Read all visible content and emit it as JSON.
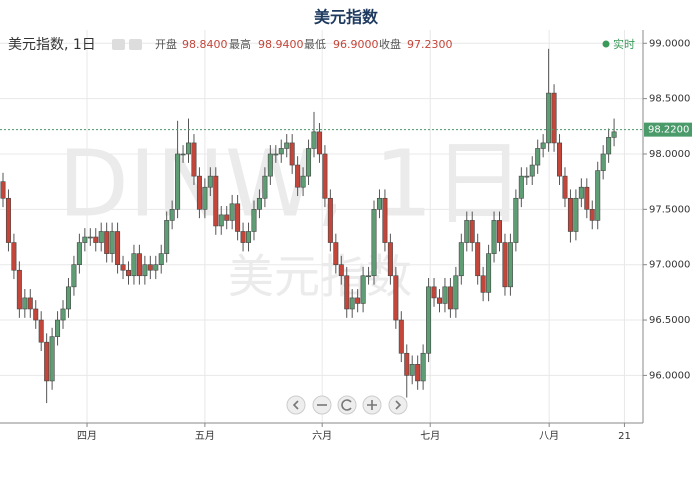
{
  "title": "美元指数",
  "header": {
    "symbol": "美元指数, 1日",
    "stats": [
      {
        "label": "开盘",
        "value": "98.8400"
      },
      {
        "label": "最高",
        "value": "98.9400"
      },
      {
        "label": "最低",
        "value": "96.9000"
      },
      {
        "label": "收盘",
        "value": "97.2300"
      }
    ],
    "live": "实时"
  },
  "watermark": {
    "symbol": "DINW, 1日",
    "name": "美元指数"
  },
  "chart_data": {
    "type": "candlestick",
    "up_color": "#5f9e75",
    "down_color": "#c4463a",
    "ylim": [
      95.57,
      99.12
    ],
    "yticks": [
      {
        "value": 96.0,
        "label": "96.0000"
      },
      {
        "value": 96.5,
        "label": "96.5000"
      },
      {
        "value": 97.0,
        "label": "97.0000"
      },
      {
        "value": 97.5,
        "label": "97.5000"
      },
      {
        "value": 98.0,
        "label": "98.0000"
      },
      {
        "value": 98.5,
        "label": "98.5000"
      },
      {
        "value": 99.0,
        "label": "99.0000"
      }
    ],
    "xlim": [
      -0.55,
      117.3
    ],
    "xticks": [
      {
        "value": 15.4,
        "label": "四月"
      },
      {
        "value": 37,
        "label": "五月"
      },
      {
        "value": 58.5,
        "label": "六月"
      },
      {
        "value": 78.3,
        "label": "七月"
      },
      {
        "value": 100.1,
        "label": "八月"
      },
      {
        "value": 113.9,
        "label": "21"
      }
    ],
    "grid": true,
    "current": {
      "value": 98.22,
      "label": "98.2200",
      "color": "#4a9a6a"
    },
    "candles": [
      [
        97.75,
        97.83,
        97.52,
        97.6
      ],
      [
        97.6,
        97.68,
        97.12,
        97.2
      ],
      [
        97.2,
        97.28,
        96.87,
        96.95
      ],
      [
        96.95,
        97.03,
        96.52,
        96.6
      ],
      [
        96.6,
        96.78,
        96.52,
        96.7
      ],
      [
        96.7,
        96.78,
        96.52,
        96.6
      ],
      [
        96.6,
        96.68,
        96.42,
        96.5
      ],
      [
        96.5,
        96.58,
        96.22,
        96.3
      ],
      [
        96.3,
        96.38,
        95.75,
        95.95
      ],
      [
        95.95,
        96.43,
        95.87,
        96.35
      ],
      [
        96.35,
        96.58,
        96.27,
        96.5
      ],
      [
        96.5,
        96.68,
        96.42,
        96.6
      ],
      [
        96.6,
        96.88,
        96.52,
        96.8
      ],
      [
        96.8,
        97.08,
        96.72,
        97.0
      ],
      [
        97.0,
        97.28,
        96.92,
        97.2
      ],
      [
        97.2,
        97.33,
        97.12,
        97.25
      ],
      [
        97.25,
        97.33,
        97.17,
        97.25
      ],
      [
        97.25,
        97.33,
        97.12,
        97.2
      ],
      [
        97.2,
        97.38,
        97.12,
        97.3
      ],
      [
        97.3,
        97.38,
        97.02,
        97.1
      ],
      [
        97.1,
        97.38,
        97.02,
        97.3
      ],
      [
        97.3,
        97.38,
        96.92,
        97.0
      ],
      [
        97.0,
        97.08,
        96.87,
        96.95
      ],
      [
        96.95,
        97.03,
        96.82,
        96.9
      ],
      [
        96.9,
        97.18,
        96.82,
        97.1
      ],
      [
        97.1,
        97.18,
        96.82,
        96.9
      ],
      [
        96.9,
        97.08,
        96.82,
        97.0
      ],
      [
        97.0,
        97.08,
        96.87,
        96.95
      ],
      [
        96.95,
        97.08,
        96.87,
        97.0
      ],
      [
        97.0,
        97.18,
        96.92,
        97.1
      ],
      [
        97.1,
        97.48,
        97.02,
        97.4
      ],
      [
        97.4,
        97.58,
        97.32,
        97.5
      ],
      [
        97.5,
        98.3,
        97.42,
        98.0
      ],
      [
        98.0,
        98.08,
        97.92,
        98.0
      ],
      [
        98.0,
        98.32,
        97.92,
        98.1
      ],
      [
        98.1,
        98.18,
        97.72,
        97.8
      ],
      [
        97.8,
        97.88,
        97.42,
        97.5
      ],
      [
        97.5,
        97.78,
        97.42,
        97.7
      ],
      [
        97.7,
        97.88,
        97.62,
        97.8
      ],
      [
        97.8,
        97.88,
        97.27,
        97.35
      ],
      [
        97.35,
        97.53,
        97.27,
        97.45
      ],
      [
        97.45,
        97.53,
        97.32,
        97.4
      ],
      [
        97.4,
        97.63,
        97.32,
        97.55
      ],
      [
        97.55,
        97.63,
        97.22,
        97.3
      ],
      [
        97.3,
        97.38,
        97.12,
        97.2
      ],
      [
        97.2,
        97.38,
        97.12,
        97.3
      ],
      [
        97.3,
        97.58,
        97.22,
        97.5
      ],
      [
        97.5,
        97.68,
        97.42,
        97.6
      ],
      [
        97.6,
        97.88,
        97.52,
        97.8
      ],
      [
        97.8,
        98.08,
        97.72,
        98.0
      ],
      [
        98.0,
        98.08,
        97.92,
        98.0
      ],
      [
        98.0,
        98.13,
        97.92,
        98.05
      ],
      [
        98.05,
        98.18,
        97.97,
        98.1
      ],
      [
        98.1,
        98.18,
        97.82,
        97.9
      ],
      [
        97.9,
        97.98,
        97.62,
        97.7
      ],
      [
        97.7,
        97.88,
        97.62,
        97.8
      ],
      [
        97.8,
        98.13,
        97.72,
        98.05
      ],
      [
        98.05,
        98.38,
        97.97,
        98.2
      ],
      [
        98.2,
        98.28,
        97.92,
        98.0
      ],
      [
        98.0,
        98.08,
        97.52,
        97.6
      ],
      [
        97.6,
        97.68,
        97.12,
        97.2
      ],
      [
        97.2,
        97.28,
        96.92,
        97.0
      ],
      [
        97.0,
        97.08,
        96.82,
        96.9
      ],
      [
        96.9,
        96.98,
        96.52,
        96.6
      ],
      [
        96.6,
        96.78,
        96.52,
        96.7
      ],
      [
        96.7,
        96.78,
        96.57,
        96.65
      ],
      [
        96.65,
        96.98,
        96.57,
        96.9
      ],
      [
        96.9,
        96.98,
        96.82,
        96.9
      ],
      [
        96.9,
        97.58,
        96.82,
        97.5
      ],
      [
        97.5,
        97.68,
        97.42,
        97.6
      ],
      [
        97.6,
        97.68,
        97.12,
        97.2
      ],
      [
        97.2,
        97.28,
        96.82,
        96.9
      ],
      [
        96.9,
        96.98,
        96.42,
        96.5
      ],
      [
        96.5,
        96.58,
        96.12,
        96.2
      ],
      [
        96.2,
        96.28,
        95.8,
        96.0
      ],
      [
        96.0,
        96.18,
        95.92,
        96.1
      ],
      [
        96.1,
        96.18,
        95.87,
        95.95
      ],
      [
        95.95,
        96.28,
        95.87,
        96.2
      ],
      [
        96.2,
        96.88,
        96.12,
        96.8
      ],
      [
        96.8,
        96.88,
        96.62,
        96.7
      ],
      [
        96.7,
        96.78,
        96.57,
        96.65
      ],
      [
        96.65,
        96.88,
        96.57,
        96.8
      ],
      [
        96.8,
        96.88,
        96.52,
        96.6
      ],
      [
        96.6,
        96.98,
        96.52,
        96.9
      ],
      [
        96.9,
        97.28,
        96.82,
        97.2
      ],
      [
        97.2,
        97.48,
        97.12,
        97.4
      ],
      [
        97.4,
        97.48,
        97.12,
        97.2
      ],
      [
        97.2,
        97.28,
        96.82,
        96.9
      ],
      [
        96.9,
        96.98,
        96.67,
        96.75
      ],
      [
        96.75,
        97.18,
        96.67,
        97.1
      ],
      [
        97.1,
        97.48,
        97.02,
        97.4
      ],
      [
        97.4,
        97.48,
        97.12,
        97.2
      ],
      [
        97.2,
        97.28,
        96.72,
        96.8
      ],
      [
        96.8,
        97.28,
        96.72,
        97.2
      ],
      [
        97.2,
        97.68,
        97.12,
        97.6
      ],
      [
        97.6,
        97.88,
        97.52,
        97.8
      ],
      [
        97.8,
        97.88,
        97.72,
        97.8
      ],
      [
        97.8,
        97.98,
        97.72,
        97.9
      ],
      [
        97.9,
        98.13,
        97.82,
        98.05
      ],
      [
        98.05,
        98.18,
        97.97,
        98.1
      ],
      [
        98.1,
        98.95,
        98.02,
        98.55
      ],
      [
        98.55,
        98.63,
        98.02,
        98.1
      ],
      [
        98.1,
        98.18,
        97.72,
        97.8
      ],
      [
        97.8,
        97.88,
        97.52,
        97.6
      ],
      [
        97.6,
        97.68,
        97.2,
        97.3
      ],
      [
        97.3,
        97.68,
        97.22,
        97.6
      ],
      [
        97.6,
        97.78,
        97.52,
        97.7
      ],
      [
        97.7,
        97.78,
        97.42,
        97.5
      ],
      [
        97.5,
        97.58,
        97.32,
        97.4
      ],
      [
        97.4,
        97.93,
        97.32,
        97.85
      ],
      [
        97.85,
        98.08,
        97.77,
        98.0
      ],
      [
        98.0,
        98.23,
        97.92,
        98.15
      ],
      [
        98.15,
        98.32,
        98.07,
        98.2
      ]
    ]
  }
}
